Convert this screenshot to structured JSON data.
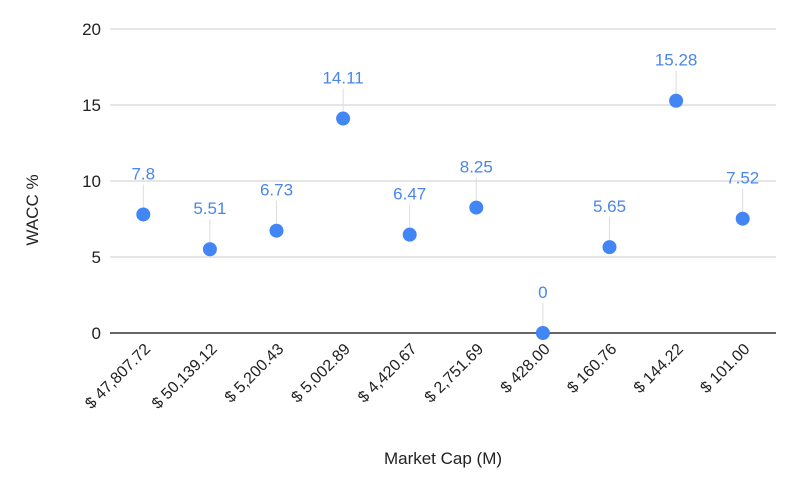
{
  "chart_data": {
    "type": "scatter",
    "title": "",
    "xlabel": "Market Cap (M)",
    "ylabel": "WACC %",
    "ylim": [
      0,
      20
    ],
    "yticks": [
      0,
      5,
      10,
      15,
      20
    ],
    "grid": true,
    "legend": null,
    "categories": [
      "$ 47,807.72",
      "$ 50,139.12",
      "$ 5,200.43",
      "$ 5,002.89",
      "$ 4,420.67",
      "$ 2,751.69",
      "$ 428.00",
      "$ 160.76",
      "$ 144.22",
      "$ 101.00"
    ],
    "series": [
      {
        "name": "WACC %",
        "color": "#4285f4",
        "values": [
          7.8,
          5.51,
          6.73,
          14.11,
          6.47,
          8.25,
          0,
          5.65,
          15.28,
          7.52
        ],
        "labels": [
          "7.8",
          "5.51",
          "6.73",
          "14.11",
          "6.47",
          "8.25",
          "0",
          "5.65",
          "15.28",
          "7.52"
        ]
      }
    ]
  },
  "colors": {
    "point": "#4285f4",
    "label": "#4a86e8",
    "grid": "#cccccc",
    "baseline": "#333333"
  }
}
